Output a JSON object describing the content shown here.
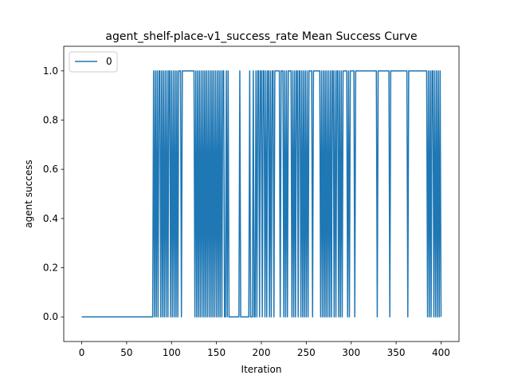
{
  "chart_data": {
    "type": "line",
    "title": "agent_shelf-place-v1_success_rate Mean Success Curve",
    "xlabel": "Iteration",
    "ylabel": "agent success",
    "xlim": [
      -20,
      420
    ],
    "ylim": [
      -0.1,
      1.1
    ],
    "xticks": [
      0,
      50,
      100,
      150,
      200,
      250,
      300,
      350,
      400
    ],
    "yticks": [
      "0.0",
      "0.2",
      "0.4",
      "0.6",
      "0.8",
      "1.0"
    ],
    "ytick_values": [
      0.0,
      0.2,
      0.4,
      0.6,
      0.8,
      1.0
    ],
    "grid": false,
    "legend": {
      "entries": [
        "0"
      ],
      "location": "upper left"
    },
    "series": [
      {
        "name": "0",
        "color": "#1f77b4",
        "points": [
          [
            0,
            0
          ],
          [
            79,
            0
          ],
          [
            80,
            1
          ],
          [
            81,
            0
          ],
          [
            82,
            1
          ],
          [
            83,
            0
          ],
          [
            84,
            1
          ],
          [
            85,
            0
          ],
          [
            86,
            1
          ],
          [
            87,
            1
          ],
          [
            88,
            0
          ],
          [
            89,
            1
          ],
          [
            90,
            0
          ],
          [
            91,
            1
          ],
          [
            92,
            0
          ],
          [
            93,
            1
          ],
          [
            94,
            0
          ],
          [
            95,
            1
          ],
          [
            96,
            0
          ],
          [
            97,
            1
          ],
          [
            98,
            1
          ],
          [
            99,
            0
          ],
          [
            100,
            1
          ],
          [
            101,
            0
          ],
          [
            102,
            1
          ],
          [
            103,
            0
          ],
          [
            104,
            1
          ],
          [
            105,
            0
          ],
          [
            106,
            1
          ],
          [
            107,
            0
          ],
          [
            108,
            1
          ],
          [
            110,
            1
          ],
          [
            111,
            0
          ],
          [
            112,
            1
          ],
          [
            125,
            1
          ],
          [
            126,
            0
          ],
          [
            127,
            1
          ],
          [
            128,
            0
          ],
          [
            129,
            1
          ],
          [
            130,
            0
          ],
          [
            131,
            1
          ],
          [
            132,
            0
          ],
          [
            133,
            1
          ],
          [
            134,
            0
          ],
          [
            135,
            1
          ],
          [
            136,
            0
          ],
          [
            137,
            1
          ],
          [
            138,
            0
          ],
          [
            139,
            1
          ],
          [
            140,
            0
          ],
          [
            141,
            1
          ],
          [
            142,
            0
          ],
          [
            143,
            1
          ],
          [
            144,
            0
          ],
          [
            145,
            1
          ],
          [
            146,
            0
          ],
          [
            147,
            1
          ],
          [
            148,
            0
          ],
          [
            149,
            1
          ],
          [
            150,
            0
          ],
          [
            151,
            1
          ],
          [
            152,
            0
          ],
          [
            153,
            1
          ],
          [
            154,
            0
          ],
          [
            155,
            1
          ],
          [
            156,
            0
          ],
          [
            157,
            1
          ],
          [
            158,
            1
          ],
          [
            159,
            0
          ],
          [
            160,
            0
          ],
          [
            161,
            1
          ],
          [
            162,
            0
          ],
          [
            163,
            1
          ],
          [
            164,
            0
          ],
          [
            165,
            0
          ],
          [
            175,
            0
          ],
          [
            176,
            1
          ],
          [
            177,
            0
          ],
          [
            186,
            0
          ],
          [
            187,
            1
          ],
          [
            188,
            0
          ],
          [
            190,
            0
          ],
          [
            191,
            1
          ],
          [
            192,
            0
          ],
          [
            193,
            0
          ],
          [
            194,
            1
          ],
          [
            195,
            0
          ],
          [
            196,
            1
          ],
          [
            197,
            1
          ],
          [
            198,
            0
          ],
          [
            199,
            1
          ],
          [
            200,
            1
          ],
          [
            201,
            0
          ],
          [
            202,
            1
          ],
          [
            203,
            1
          ],
          [
            204,
            0
          ],
          [
            205,
            1
          ],
          [
            206,
            0
          ],
          [
            207,
            1
          ],
          [
            208,
            1
          ],
          [
            209,
            0
          ],
          [
            210,
            1
          ],
          [
            211,
            0
          ],
          [
            212,
            1
          ],
          [
            213,
            1
          ],
          [
            214,
            0
          ],
          [
            215,
            1
          ],
          [
            216,
            1
          ],
          [
            217,
            1
          ],
          [
            218,
            1
          ],
          [
            219,
            1
          ],
          [
            220,
            1
          ],
          [
            221,
            0
          ],
          [
            222,
            1
          ],
          [
            223,
            1
          ],
          [
            224,
            1
          ],
          [
            225,
            0
          ],
          [
            226,
            1
          ],
          [
            227,
            0
          ],
          [
            228,
            1
          ],
          [
            229,
            0
          ],
          [
            230,
            1
          ],
          [
            231,
            1
          ],
          [
            232,
            1
          ],
          [
            233,
            1
          ],
          [
            234,
            0
          ],
          [
            235,
            1
          ],
          [
            236,
            0
          ],
          [
            237,
            1
          ],
          [
            238,
            0
          ],
          [
            239,
            1
          ],
          [
            240,
            1
          ],
          [
            241,
            0
          ],
          [
            242,
            1
          ],
          [
            243,
            1
          ],
          [
            244,
            0
          ],
          [
            245,
            1
          ],
          [
            246,
            0
          ],
          [
            247,
            1
          ],
          [
            248,
            0
          ],
          [
            249,
            1
          ],
          [
            250,
            0
          ],
          [
            251,
            1
          ],
          [
            252,
            0
          ],
          [
            253,
            1
          ],
          [
            254,
            1
          ],
          [
            255,
            1
          ],
          [
            256,
            1
          ],
          [
            257,
            0
          ],
          [
            258,
            1
          ],
          [
            259,
            1
          ],
          [
            260,
            1
          ],
          [
            261,
            1
          ],
          [
            262,
            1
          ],
          [
            263,
            1
          ],
          [
            264,
            1
          ],
          [
            265,
            1
          ],
          [
            266,
            0
          ],
          [
            267,
            1
          ],
          [
            268,
            0
          ],
          [
            269,
            1
          ],
          [
            270,
            0
          ],
          [
            271,
            1
          ],
          [
            272,
            0
          ],
          [
            273,
            1
          ],
          [
            274,
            0
          ],
          [
            275,
            1
          ],
          [
            276,
            0
          ],
          [
            277,
            1
          ],
          [
            278,
            0
          ],
          [
            279,
            1
          ],
          [
            280,
            1
          ],
          [
            281,
            0
          ],
          [
            282,
            1
          ],
          [
            283,
            0
          ],
          [
            284,
            1
          ],
          [
            285,
            1
          ],
          [
            286,
            0
          ],
          [
            287,
            1
          ],
          [
            288,
            0
          ],
          [
            289,
            1
          ],
          [
            290,
            0
          ],
          [
            291,
            1
          ],
          [
            292,
            1
          ],
          [
            293,
            1
          ],
          [
            294,
            1
          ],
          [
            295,
            1
          ],
          [
            296,
            0
          ],
          [
            297,
            1
          ],
          [
            298,
            0
          ],
          [
            299,
            1
          ],
          [
            300,
            1
          ],
          [
            301,
            1
          ],
          [
            302,
            1
          ],
          [
            303,
            1
          ],
          [
            304,
            0
          ],
          [
            305,
            1
          ],
          [
            328,
            1
          ],
          [
            329,
            0
          ],
          [
            330,
            1
          ],
          [
            342,
            1
          ],
          [
            343,
            0
          ],
          [
            344,
            1
          ],
          [
            362,
            1
          ],
          [
            363,
            0
          ],
          [
            364,
            1
          ],
          [
            384,
            1
          ],
          [
            385,
            0
          ],
          [
            386,
            1
          ],
          [
            387,
            0
          ],
          [
            388,
            1
          ],
          [
            389,
            0
          ],
          [
            390,
            1
          ],
          [
            391,
            1
          ],
          [
            392,
            0
          ],
          [
            393,
            1
          ],
          [
            394,
            0
          ],
          [
            395,
            1
          ],
          [
            396,
            0
          ],
          [
            397,
            1
          ],
          [
            398,
            0
          ],
          [
            399,
            1
          ],
          [
            400,
            0
          ]
        ]
      }
    ]
  }
}
